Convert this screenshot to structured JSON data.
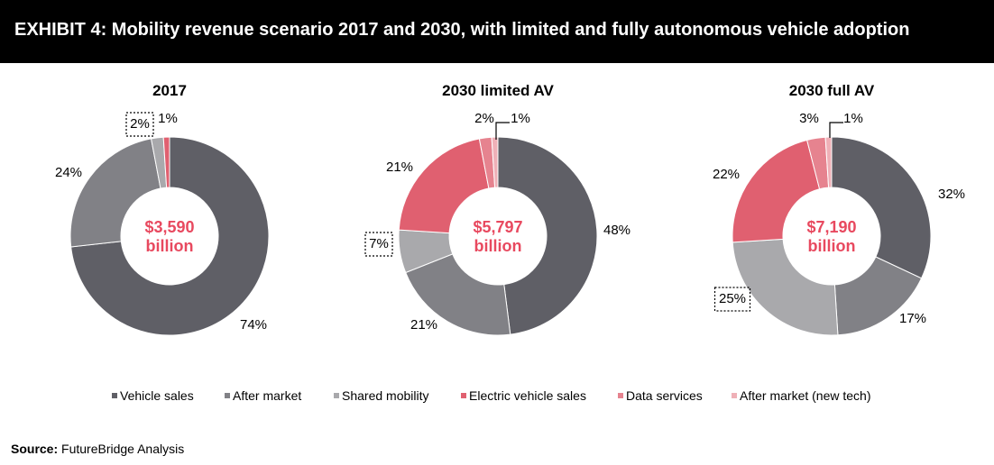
{
  "header": {
    "title": "EXHIBIT 4: Mobility revenue scenario 2017 and 2030, with limited and fully autonomous vehicle adoption"
  },
  "source": {
    "label": "Source:",
    "text": "FutureBridge Analysis"
  },
  "colors": {
    "Vehicle sales": "#5f5f66",
    "After market": "#818186",
    "Shared mobility": "#a9a9ac",
    "Electric vehicle sales": "#e06070",
    "Data services": "#e6838f",
    "After market (new tech)": "#efb0b7",
    "center_text": "#e8495f"
  },
  "chart_data": [
    {
      "type": "pie",
      "title": "2017",
      "center_value": "$3,590",
      "center_unit": "billion",
      "categories": [
        "Vehicle sales",
        "After market",
        "Shared mobility",
        "Electric vehicle sales",
        "Data services",
        "After market (new tech)"
      ],
      "values": [
        74,
        24,
        2,
        1,
        0,
        0
      ],
      "labels": [
        "74%",
        "24%",
        "2%",
        "1%",
        "",
        ""
      ],
      "boxed": [
        "2%"
      ]
    },
    {
      "type": "pie",
      "title": "2030 limited AV",
      "center_value": "$5,797",
      "center_unit": "billion",
      "categories": [
        "Vehicle sales",
        "After market",
        "Shared mobility",
        "Electric vehicle sales",
        "Data services",
        "After market (new tech)"
      ],
      "values": [
        48,
        21,
        7,
        21,
        2,
        1
      ],
      "labels": [
        "48%",
        "21%",
        "7%",
        "21%",
        "2%",
        "1%"
      ],
      "boxed": [
        "7%"
      ]
    },
    {
      "type": "pie",
      "title": "2030 full AV",
      "center_value": "$7,190",
      "center_unit": "billion",
      "categories": [
        "Vehicle sales",
        "After market",
        "Shared mobility",
        "Electric vehicle sales",
        "Data services",
        "After market (new tech)"
      ],
      "values": [
        32,
        17,
        25,
        22,
        3,
        1
      ],
      "labels": [
        "32%",
        "17%",
        "25%",
        "22%",
        "3%",
        "1%"
      ],
      "boxed": [
        "25%"
      ]
    }
  ],
  "legend": [
    "Vehicle sales",
    "After market",
    "Shared mobility",
    "Electric vehicle sales",
    "Data services",
    "After market (new tech)"
  ]
}
